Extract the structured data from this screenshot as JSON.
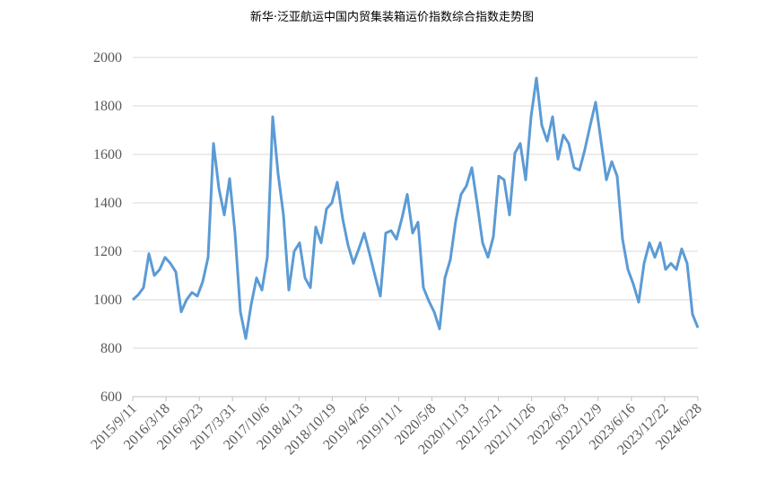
{
  "chart_data": {
    "type": "line",
    "title": "新华·泛亚航运中国内贸集装箱运价指数综合指数走势图",
    "xlabel": "",
    "ylabel": "",
    "ylim": [
      600,
      2000
    ],
    "yticks": [
      "600",
      "800",
      "1000",
      "1200",
      "1400",
      "1600",
      "1800",
      "2000"
    ],
    "xticks": [
      "2015/9/11",
      "2016/3/18",
      "2016/9/23",
      "2017/3/31",
      "2017/10/6",
      "2018/4/13",
      "2018/10/19",
      "2019/4/26",
      "2019/11/1",
      "2020/5/8",
      "2020/11/13",
      "2021/5/21",
      "2021/11/26",
      "2022/6/3",
      "2022/12/9",
      "2023/6/16",
      "2023/12/22",
      "2024/6/28"
    ],
    "xlim": [
      "2015/9/11",
      "2024/6/28"
    ],
    "grid": true,
    "legend": "none",
    "line_color": "#5B9BD5",
    "x_start_month": "2015-09",
    "x_end_month": "2024-06",
    "values": [
      1000,
      1020,
      1050,
      1190,
      1100,
      1125,
      1175,
      1150,
      1115,
      950,
      1000,
      1030,
      1015,
      1075,
      1175,
      1645,
      1460,
      1350,
      1500,
      1275,
      950,
      840,
      980,
      1090,
      1040,
      1175,
      1755,
      1520,
      1350,
      1040,
      1200,
      1235,
      1090,
      1050,
      1300,
      1235,
      1375,
      1400,
      1485,
      1335,
      1225,
      1150,
      1210,
      1275,
      1190,
      1100,
      1015,
      1275,
      1285,
      1250,
      1335,
      1435,
      1275,
      1320,
      1050,
      995,
      950,
      880,
      1090,
      1165,
      1325,
      1435,
      1470,
      1545,
      1395,
      1235,
      1175,
      1260,
      1510,
      1495,
      1350,
      1605,
      1645,
      1495,
      1755,
      1915,
      1720,
      1655,
      1755,
      1580,
      1680,
      1645,
      1545,
      1535,
      1620,
      1720,
      1815,
      1655,
      1495,
      1570,
      1510,
      1250,
      1125,
      1065,
      990,
      1150,
      1235,
      1175,
      1235,
      1125,
      1150,
      1125,
      1210,
      1150,
      940,
      885
    ]
  }
}
